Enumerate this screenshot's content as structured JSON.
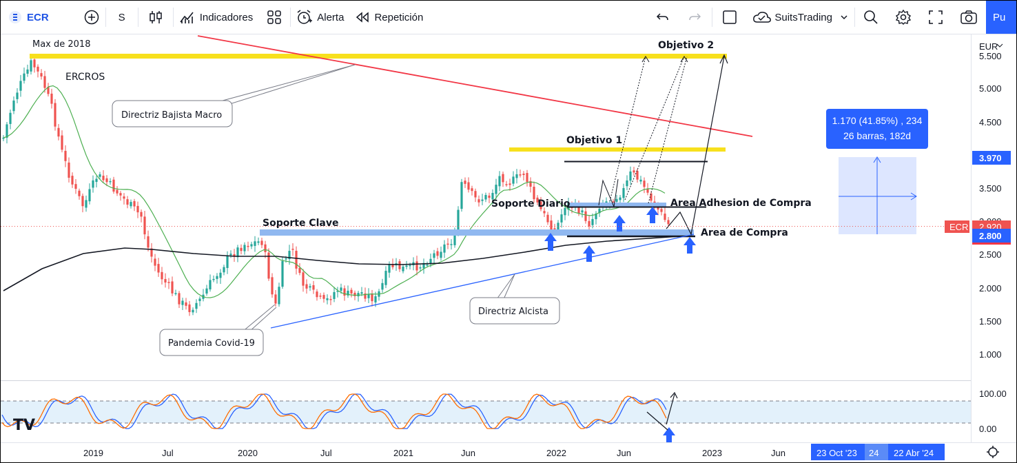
{
  "toolbar": {
    "symbol": "ECR",
    "interval": "S",
    "indicators": "Indicadores",
    "alert": "Alerta",
    "replay": "Repetición",
    "layout_name": "SuitsTrading",
    "publish": "Pu"
  },
  "price_axis": {
    "currency": "EUR",
    "ticks": [
      "5.500",
      "5.000",
      "4.500",
      "3.500",
      "3.000",
      "2.500",
      "2.000",
      "1.500",
      "1.000"
    ],
    "price_marker_top": "3.970",
    "price_marker_symbol": "ECR",
    "price_marker_current": "2.920",
    "price_marker_bottom": "2.800"
  },
  "time_axis": {
    "ticks": [
      "2019",
      "Jul",
      "2020",
      "Jul",
      "2021",
      "Jun",
      "2022",
      "Jun",
      "2023",
      "Jun"
    ],
    "highlight_start": "23 Oct '23",
    "highlight_mid": "24",
    "highlight_end": "22 Abr '24"
  },
  "osc_axis": {
    "ticks": [
      "100.00",
      "0.00"
    ]
  },
  "annotations": {
    "max_2018": "Max de 2018",
    "name": "ERCROS",
    "objetivo2": "Objetivo 2",
    "objetivo1": "Objetivo 1",
    "bajista": "Directriz Bajista Macro",
    "soporte_clave": "Soporte Clave",
    "soporte_diario": "Soporte Diario",
    "adhesion": "Area Adhesion de Compra",
    "area_compra": "Area de Compra",
    "alcista": "Directriz Alcista",
    "pandemia": "Pandemia Covid-19"
  },
  "measure": {
    "line1": "1.170 (41.85%) , 234",
    "line2": "26 barras, 182d"
  },
  "colors": {
    "bull": "#26a69a",
    "bear": "#ef5350",
    "ma_short": "#4caf50",
    "ma_long": "#131722",
    "yellow": "#f7e01d",
    "support": "#90b8f0",
    "accent": "#2962ff"
  },
  "icons": [
    "plus-circle-icon",
    "candles-icon",
    "indicators-icon",
    "grid-icon",
    "alarm-icon",
    "replay-icon",
    "undo-icon",
    "redo-icon",
    "square-icon",
    "cloud-icon",
    "search-icon",
    "gear-icon",
    "fullscreen-icon",
    "camera-icon",
    "tradingview-logo-icon"
  ]
}
